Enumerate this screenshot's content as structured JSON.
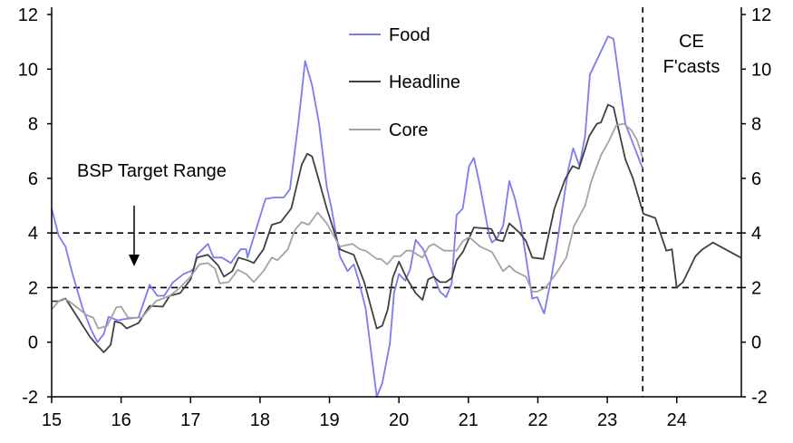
{
  "chart_data": {
    "type": "line",
    "title": "",
    "xlabel": "",
    "ylabel": "",
    "xlim": [
      15,
      24.93
    ],
    "ylim": [
      -2,
      12
    ],
    "x_ticks": [
      "15",
      "16",
      "17",
      "18",
      "19",
      "20",
      "21",
      "22",
      "23",
      "24"
    ],
    "y_ticks_left": [
      "-2",
      "0",
      "2",
      "4",
      "6",
      "8",
      "10",
      "12"
    ],
    "y_ticks_right": [
      "-2",
      "0",
      "2",
      "4",
      "6",
      "8",
      "10",
      "12"
    ],
    "grid": false,
    "legend_placement": "top-center",
    "reference_lines": [
      {
        "y": 4,
        "style": "dashed"
      },
      {
        "y": 2,
        "style": "dashed"
      }
    ],
    "forecast_divider_x": 23.51,
    "annotations": {
      "target_range": "BSP Target Range",
      "forecast_line1": "CE",
      "forecast_line2": "F'casts"
    },
    "series": [
      {
        "name": "Food",
        "color": "#7b7bf2",
        "x": [
          15.0,
          15.1,
          15.2,
          15.3,
          15.45,
          15.58,
          15.66,
          15.75,
          15.82,
          15.95,
          16.08,
          16.25,
          16.41,
          16.52,
          16.62,
          16.75,
          16.9,
          17.0,
          17.05,
          17.09,
          17.25,
          17.33,
          17.45,
          17.58,
          17.72,
          17.8,
          17.82,
          18.0,
          18.08,
          18.2,
          18.34,
          18.43,
          18.55,
          18.65,
          18.75,
          18.85,
          18.96,
          19.03,
          19.15,
          19.26,
          19.35,
          19.41,
          19.52,
          19.68,
          19.76,
          19.87,
          19.93,
          20.0,
          20.09,
          20.16,
          20.24,
          20.35,
          20.59,
          20.68,
          20.76,
          20.83,
          20.92,
          21.01,
          21.08,
          21.17,
          21.3,
          21.34,
          21.41,
          21.5,
          21.59,
          21.67,
          21.76,
          21.92,
          21.99,
          22.09,
          22.18,
          22.26,
          22.44,
          22.51,
          22.6,
          22.68,
          22.75,
          22.91,
          23.01,
          23.09,
          23.26,
          23.51
        ],
        "values": [
          4.9,
          3.9,
          3.5,
          2.5,
          1.2,
          0.4,
          0.0,
          0.3,
          0.93,
          0.8,
          0.86,
          0.9,
          2.1,
          1.7,
          1.7,
          2.2,
          2.5,
          2.6,
          2.7,
          3.2,
          3.6,
          3.1,
          3.1,
          2.9,
          3.4,
          3.4,
          3.1,
          4.6,
          5.25,
          5.3,
          5.3,
          5.6,
          8.0,
          10.3,
          9.4,
          8.0,
          5.7,
          4.9,
          3.15,
          2.6,
          2.85,
          2.35,
          1.25,
          -2.0,
          -1.5,
          -0.05,
          1.8,
          2.5,
          2.25,
          2.65,
          3.75,
          3.4,
          1.85,
          1.65,
          2.15,
          4.65,
          4.9,
          6.45,
          6.75,
          5.7,
          3.9,
          3.65,
          3.8,
          4.25,
          5.9,
          5.25,
          4.25,
          1.6,
          1.65,
          1.05,
          2.15,
          3.35,
          6.35,
          7.1,
          6.45,
          7.55,
          9.8,
          10.65,
          11.2,
          11.1,
          8.0,
          6.35
        ]
      },
      {
        "name": "Headline",
        "color": "#404040",
        "x": [
          15.0,
          15.1,
          15.2,
          15.3,
          15.45,
          15.55,
          15.65,
          15.75,
          15.85,
          15.91,
          16.0,
          16.08,
          16.25,
          16.41,
          16.6,
          16.7,
          16.85,
          17.0,
          17.09,
          17.25,
          17.4,
          17.48,
          17.6,
          17.69,
          17.82,
          17.91,
          18.05,
          18.17,
          18.3,
          18.45,
          18.6,
          18.68,
          18.75,
          18.85,
          18.96,
          19.15,
          19.35,
          19.5,
          19.68,
          19.76,
          19.84,
          19.91,
          20.0,
          20.11,
          20.24,
          20.34,
          20.42,
          20.5,
          20.59,
          20.68,
          20.76,
          20.83,
          20.92,
          21.08,
          21.33,
          21.41,
          21.5,
          21.59,
          21.74,
          21.83,
          21.92,
          22.08,
          22.24,
          22.39,
          22.5,
          22.59,
          22.74,
          22.85,
          22.91,
          23.01,
          23.09,
          23.26,
          23.37,
          23.52,
          23.69,
          23.85,
          23.93,
          24.0,
          24.09,
          24.27,
          24.37,
          24.52,
          24.7,
          24.92
        ],
        "values": [
          1.5,
          1.5,
          1.6,
          1.2,
          0.6,
          0.2,
          -0.1,
          -0.37,
          -0.1,
          0.76,
          0.7,
          0.5,
          0.7,
          1.33,
          1.3,
          1.7,
          1.8,
          2.3,
          3.1,
          3.2,
          2.8,
          2.4,
          2.6,
          3.1,
          3.0,
          2.9,
          3.4,
          4.3,
          4.4,
          4.9,
          6.5,
          6.9,
          6.8,
          5.9,
          4.9,
          3.4,
          3.2,
          2.2,
          0.5,
          0.6,
          1.2,
          2.35,
          2.95,
          2.35,
          1.8,
          1.55,
          2.3,
          2.4,
          2.2,
          2.2,
          2.35,
          3.0,
          3.3,
          4.2,
          4.15,
          3.75,
          3.7,
          4.35,
          4.0,
          3.7,
          3.1,
          3.05,
          4.9,
          5.95,
          6.45,
          6.35,
          7.55,
          8.0,
          8.05,
          8.7,
          8.6,
          6.7,
          6.0,
          4.7,
          4.55,
          3.35,
          3.4,
          2.0,
          2.2,
          3.15,
          3.4,
          3.65,
          3.4,
          3.1
        ]
      },
      {
        "name": "Core",
        "color": "#a3a3a3",
        "x": [
          15.0,
          15.1,
          15.17,
          15.25,
          15.35,
          15.5,
          15.6,
          15.67,
          15.8,
          15.93,
          16.0,
          16.1,
          16.3,
          16.4,
          16.5,
          16.6,
          16.7,
          16.85,
          17.0,
          17.13,
          17.25,
          17.35,
          17.42,
          17.55,
          17.68,
          17.8,
          17.91,
          18.05,
          18.17,
          18.25,
          18.4,
          18.5,
          18.6,
          18.7,
          18.83,
          18.96,
          19.15,
          19.33,
          19.44,
          19.52,
          19.68,
          19.74,
          19.83,
          19.93,
          20.02,
          20.11,
          20.17,
          20.34,
          20.43,
          20.5,
          20.65,
          20.83,
          20.92,
          21.01,
          21.17,
          21.34,
          21.5,
          21.59,
          21.67,
          21.83,
          21.92,
          21.99,
          22.11,
          22.26,
          22.41,
          22.52,
          22.68,
          22.77,
          22.91,
          23.02,
          23.13,
          23.24,
          23.35,
          23.43,
          23.51
        ],
        "values": [
          1.2,
          1.5,
          1.6,
          1.5,
          1.3,
          1.0,
          0.9,
          0.5,
          0.6,
          1.27,
          1.3,
          0.9,
          0.9,
          1.2,
          1.5,
          1.6,
          1.7,
          2.0,
          2.4,
          2.85,
          2.9,
          2.7,
          2.15,
          2.2,
          2.65,
          2.5,
          2.2,
          2.6,
          3.1,
          3.0,
          3.4,
          4.1,
          4.4,
          4.3,
          4.75,
          4.35,
          3.5,
          3.6,
          3.4,
          3.35,
          3.05,
          3.05,
          2.85,
          3.15,
          3.15,
          3.35,
          3.35,
          3.1,
          3.5,
          3.6,
          3.35,
          3.35,
          3.7,
          3.85,
          3.5,
          3.3,
          2.6,
          2.8,
          2.6,
          2.4,
          1.85,
          1.85,
          2.0,
          2.5,
          3.1,
          4.25,
          5.0,
          5.9,
          6.85,
          7.35,
          7.95,
          8.0,
          7.75,
          7.4,
          6.75
        ]
      }
    ]
  }
}
